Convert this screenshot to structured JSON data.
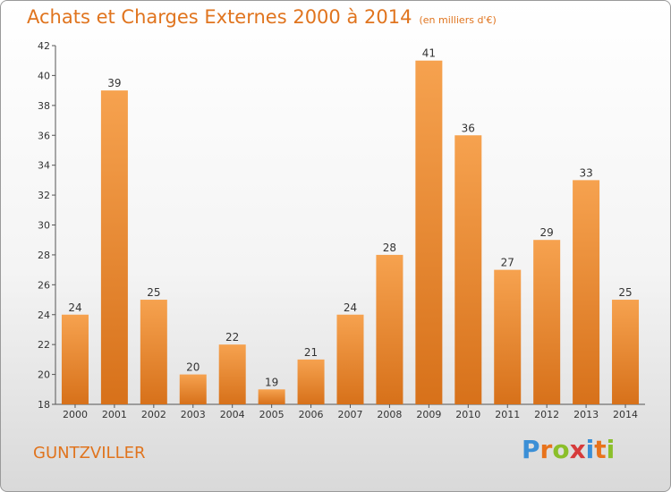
{
  "chart_data": {
    "type": "bar",
    "title": "Achats et Charges Externes 2000 à 2014",
    "subtitle": "(en milliers d'€)",
    "categories": [
      "2000",
      "2001",
      "2002",
      "2003",
      "2004",
      "2005",
      "2006",
      "2007",
      "2008",
      "2009",
      "2010",
      "2011",
      "2012",
      "2013",
      "2014"
    ],
    "values": [
      24,
      39,
      25,
      20,
      22,
      19,
      21,
      24,
      28,
      41,
      36,
      27,
      29,
      33,
      25
    ],
    "ylim": [
      18,
      42
    ],
    "yticks": [
      18,
      20,
      22,
      24,
      26,
      28,
      30,
      32,
      34,
      36,
      38,
      40,
      42
    ],
    "grid": false,
    "bar_color": "#f0892a"
  },
  "commune": "GUNTZVILLER",
  "logo": {
    "letters": [
      "P",
      "r",
      "o",
      "x",
      "i",
      "t",
      "i"
    ],
    "colors": [
      "#3b8fd6",
      "#e8731c",
      "#8bbf2a",
      "#d63b3b",
      "#3b8fd6",
      "#e8731c",
      "#8bbf2a"
    ]
  }
}
